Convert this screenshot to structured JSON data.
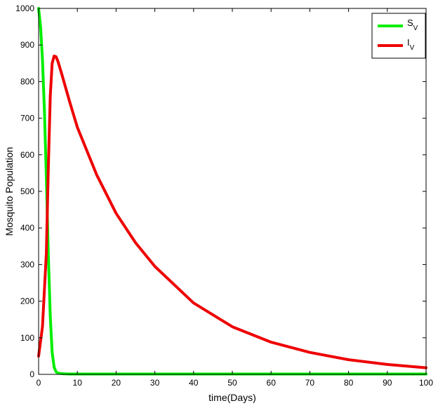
{
  "chart_data": {
    "type": "line",
    "xlabel": "time(Days)",
    "ylabel": "Mosquito Population",
    "xlim": [
      0,
      100
    ],
    "ylim": [
      0,
      1000
    ],
    "xticks": [
      "0",
      "10",
      "20",
      "30",
      "40",
      "50",
      "60",
      "70",
      "80",
      "90",
      "100"
    ],
    "yticks": [
      "0",
      "100",
      "200",
      "300",
      "400",
      "500",
      "600",
      "700",
      "800",
      "900",
      "1000"
    ],
    "grid": false,
    "legend_position": "top-right",
    "series": [
      {
        "name": "S",
        "subscript": "V",
        "color": "#00ee00",
        "x": [
          0,
          0.5,
          1,
          1.5,
          2,
          2.5,
          3,
          3.5,
          4,
          4.5,
          5,
          6,
          8,
          10,
          20,
          40,
          60,
          80,
          100
        ],
        "y": [
          1000,
          950,
          860,
          720,
          540,
          330,
          160,
          60,
          20,
          7,
          3,
          2,
          1,
          1,
          1,
          1,
          1,
          1,
          1
        ]
      },
      {
        "name": "I",
        "subscript": "V",
        "color": "#ee0000",
        "x": [
          0,
          1,
          2,
          2.5,
          3,
          3.5,
          4,
          4.5,
          5,
          6,
          8,
          10,
          15,
          20,
          25,
          30,
          40,
          50,
          60,
          70,
          80,
          90,
          100
        ],
        "y": [
          50,
          130,
          330,
          560,
          760,
          850,
          870,
          868,
          855,
          820,
          745,
          675,
          545,
          440,
          360,
          295,
          195,
          130,
          88,
          60,
          40,
          27,
          18
        ]
      }
    ]
  }
}
